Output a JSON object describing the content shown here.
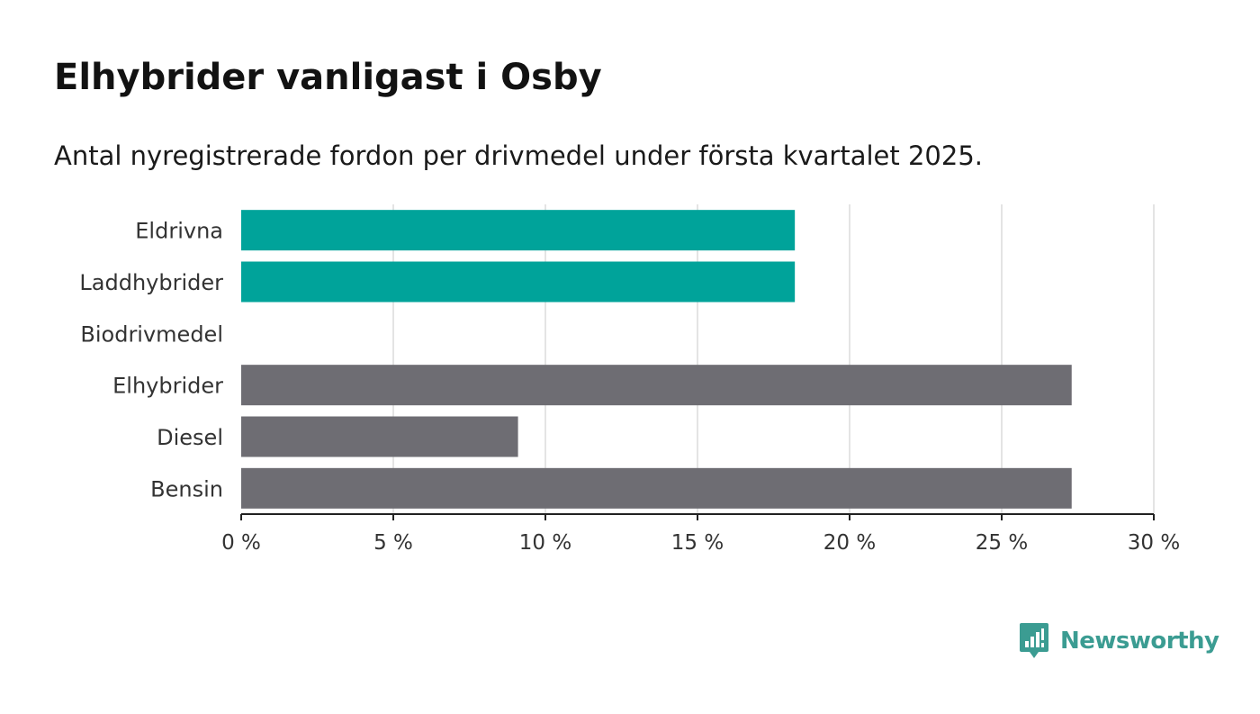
{
  "chart_data": {
    "type": "bar",
    "orientation": "horizontal",
    "title": "Elhybrider vanligast i Osby",
    "subtitle": "Antal nyregistrerade fordon per drivmedel under första kvartalet 2025.",
    "categories": [
      "Eldrivna",
      "Laddhybrider",
      "Biodrivmedel",
      "Elhybrider",
      "Diesel",
      "Bensin"
    ],
    "values": [
      18.2,
      18.2,
      0,
      27.3,
      9.1,
      27.3
    ],
    "unit": "%",
    "xlim": [
      0,
      30
    ],
    "xticks": [
      0,
      5,
      10,
      15,
      20,
      25,
      30
    ],
    "xtick_labels": [
      "0 %",
      "5 %",
      "10 %",
      "15 %",
      "20 %",
      "25 %",
      "30 %"
    ],
    "grid": true,
    "colors": {
      "Eldrivna": "#00a39a",
      "Laddhybrider": "#00a39a",
      "Biodrivmedel": "#00a39a",
      "Elhybrider": "#6e6d73",
      "Diesel": "#6e6d73",
      "Bensin": "#6e6d73"
    }
  },
  "branding": {
    "logo_text": "Newsworthy",
    "logo_color": "#3b9c92",
    "logo_icon": "newsworthy-chart-icon"
  }
}
